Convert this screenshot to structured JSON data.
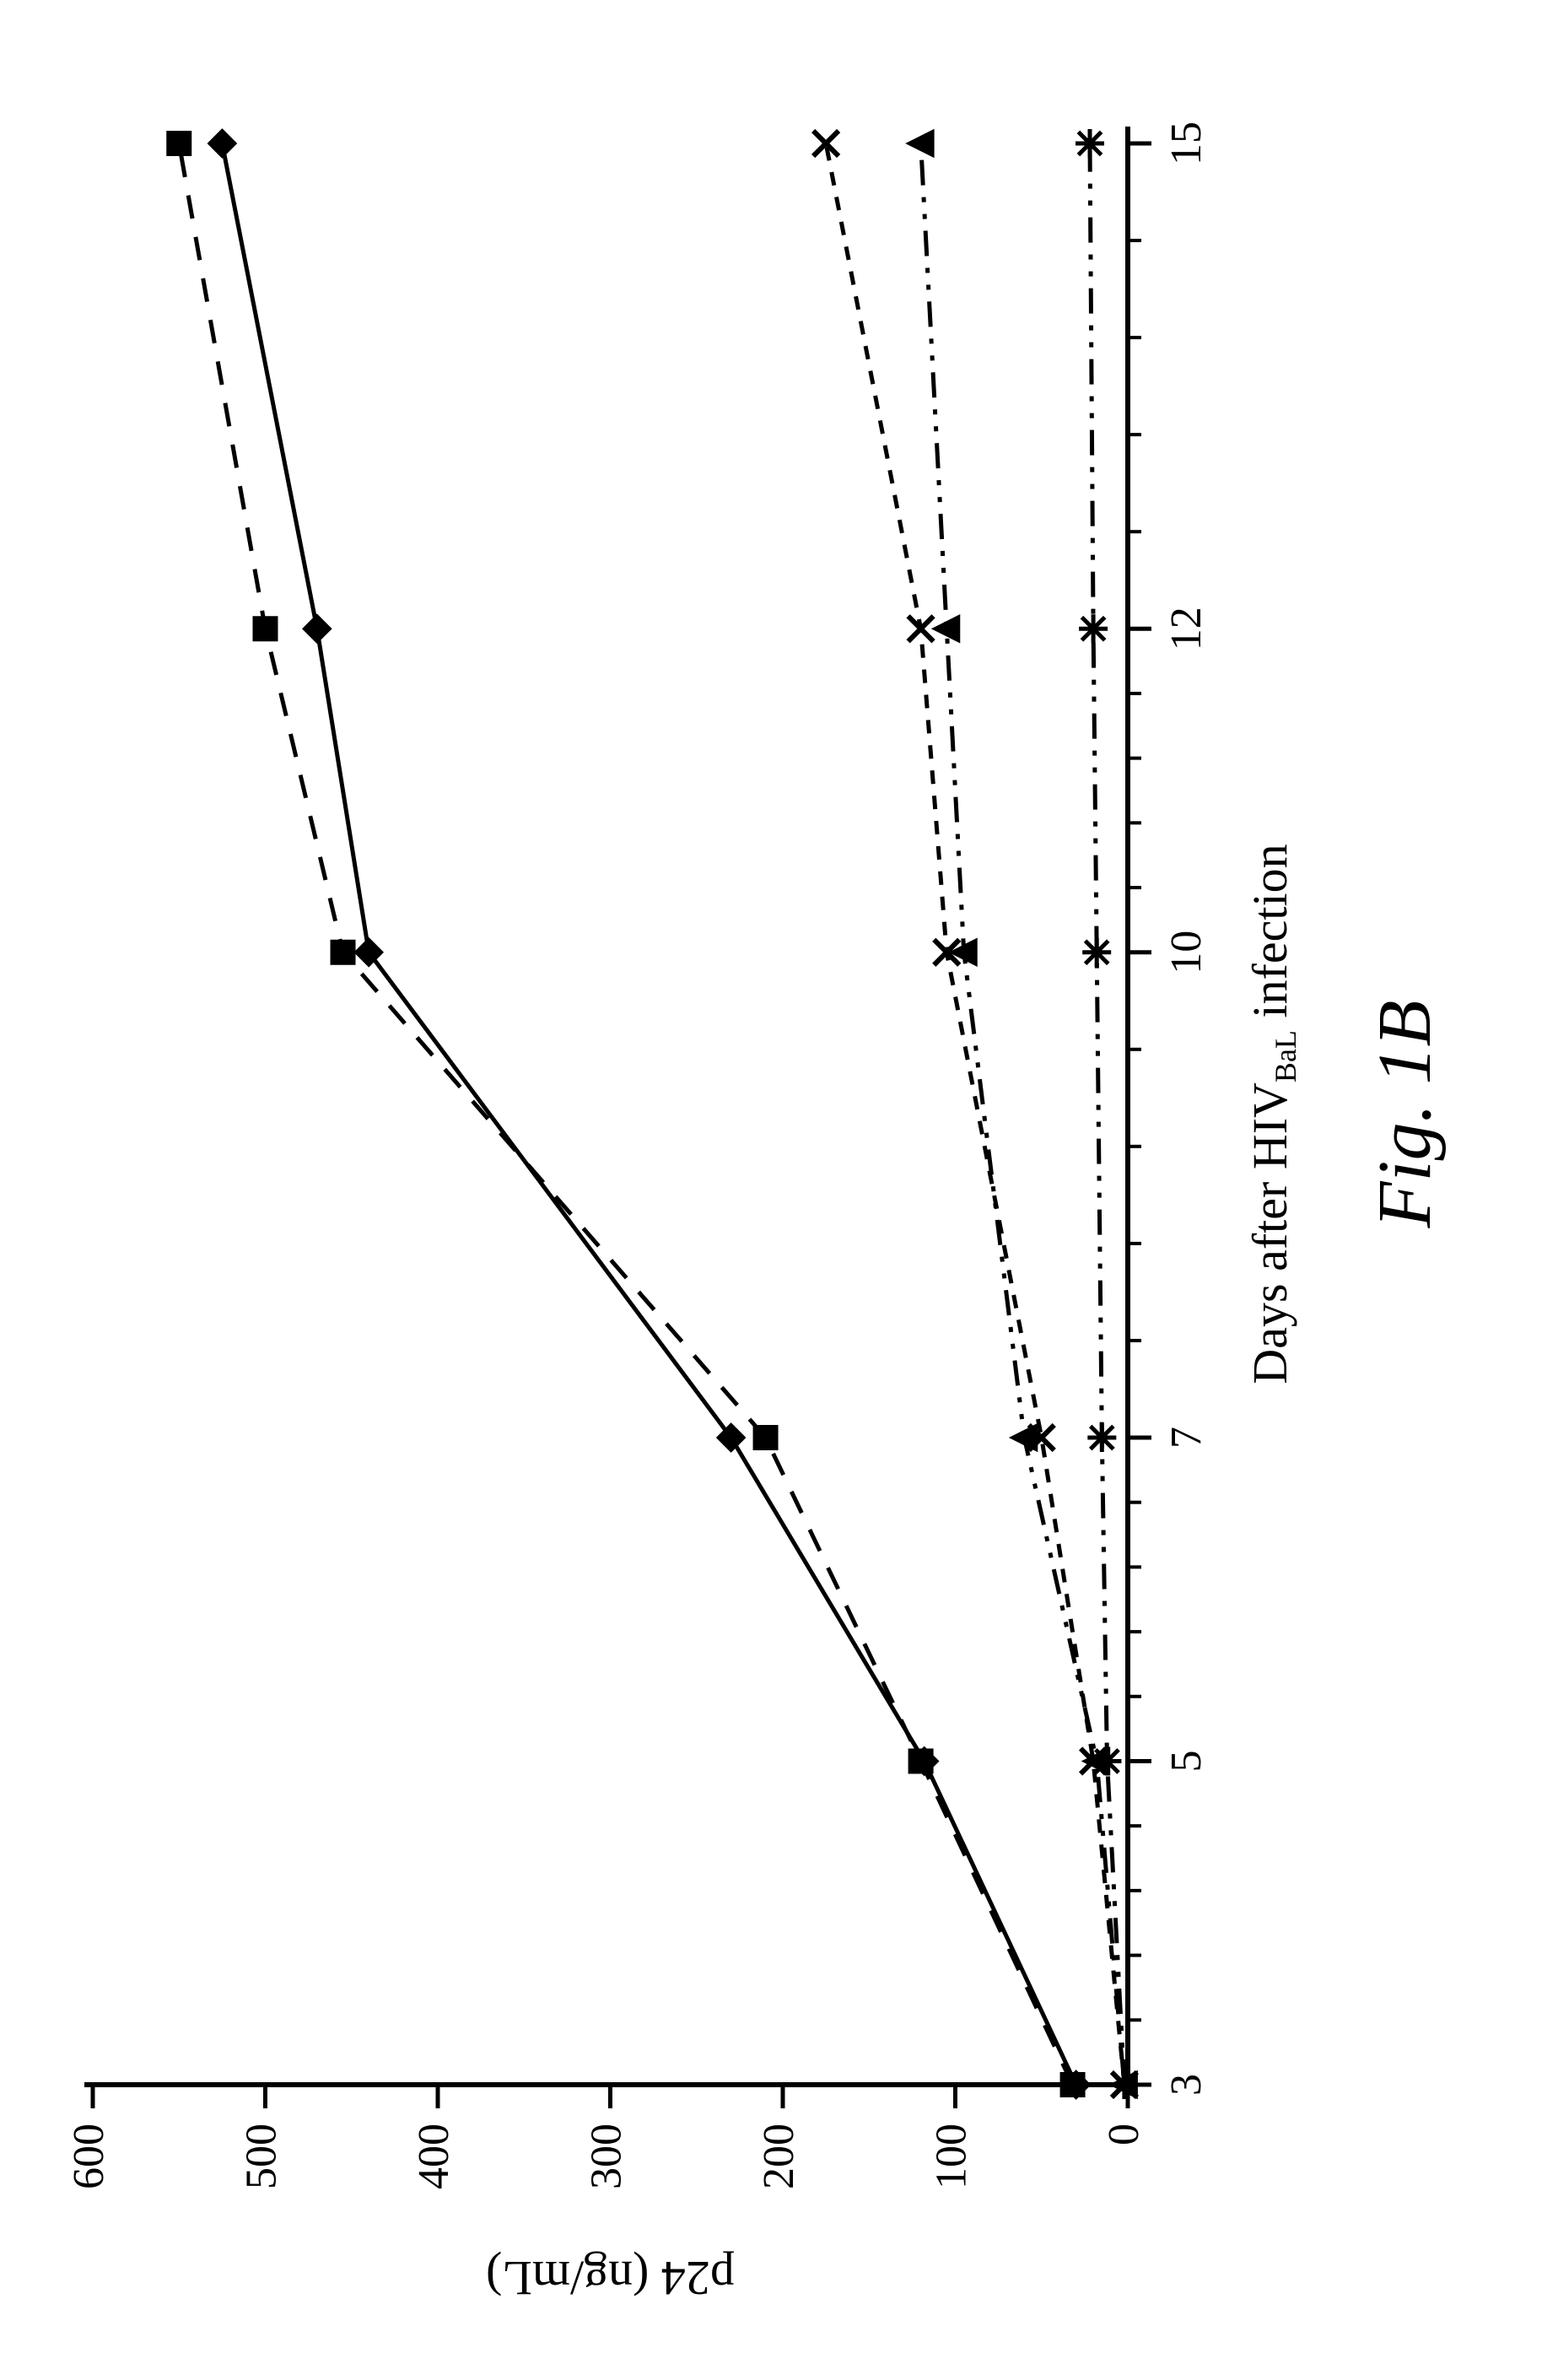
{
  "chart": {
    "type": "line",
    "orientation": "rotated-90-ccw",
    "background_color": "#ffffff",
    "axis_color": "#000000",
    "y": {
      "label": "p24 (ng/mL)",
      "label_fontsize": 58,
      "min": 0,
      "max": 600,
      "ticks": [
        0,
        100,
        200,
        300,
        400,
        500,
        600
      ],
      "tick_fontsize": 52,
      "tick_major_len": 28,
      "axis_line_width": 6
    },
    "x": {
      "label_prefix": "Days after HIV",
      "label_sub": "BaL",
      "label_suffix": " infection",
      "label_fontsize": 58,
      "ticks": [
        3,
        5,
        7,
        10,
        12,
        15
      ],
      "tick_fontsize": 52,
      "tick_major_len": 28,
      "tick_minor_len": 16,
      "axis_line_width": 6,
      "minor_divisions_between_ticks": 4
    },
    "series": [
      {
        "name": "series-diamond-solid",
        "marker": "diamond",
        "marker_filled": true,
        "line_dash": "solid",
        "line_width": 5,
        "marker_size": 30,
        "color": "#000000",
        "data": [
          {
            "x": 3,
            "y": 30
          },
          {
            "x": 5,
            "y": 118
          },
          {
            "x": 7,
            "y": 230
          },
          {
            "x": 10,
            "y": 440
          },
          {
            "x": 12,
            "y": 470
          },
          {
            "x": 15,
            "y": 525
          }
        ]
      },
      {
        "name": "series-square-dash",
        "marker": "square",
        "marker_filled": true,
        "line_dash": "dash",
        "line_width": 5,
        "marker_size": 26,
        "color": "#000000",
        "data": [
          {
            "x": 3,
            "y": 32
          },
          {
            "x": 5,
            "y": 120
          },
          {
            "x": 7,
            "y": 210
          },
          {
            "x": 10,
            "y": 455
          },
          {
            "x": 12,
            "y": 500
          },
          {
            "x": 15,
            "y": 550
          }
        ]
      },
      {
        "name": "series-x-shortdash",
        "marker": "x",
        "marker_filled": false,
        "line_dash": "shortdash",
        "line_width": 5,
        "marker_size": 30,
        "color": "#000000",
        "data": [
          {
            "x": 3,
            "y": 2
          },
          {
            "x": 5,
            "y": 20
          },
          {
            "x": 7,
            "y": 50
          },
          {
            "x": 10,
            "y": 105
          },
          {
            "x": 12,
            "y": 120
          },
          {
            "x": 15,
            "y": 175
          }
        ]
      },
      {
        "name": "series-triangle-dashdot",
        "marker": "triangle",
        "marker_filled": true,
        "line_dash": "dashdotdot",
        "line_width": 5,
        "marker_size": 28,
        "color": "#000000",
        "data": [
          {
            "x": 3,
            "y": 2
          },
          {
            "x": 5,
            "y": 18
          },
          {
            "x": 7,
            "y": 60
          },
          {
            "x": 10,
            "y": 95
          },
          {
            "x": 12,
            "y": 105
          },
          {
            "x": 15,
            "y": 120
          }
        ]
      },
      {
        "name": "series-asterisk-dashdotdot",
        "marker": "asterisk",
        "marker_filled": false,
        "line_dash": "dashdotdot",
        "line_width": 5,
        "marker_size": 34,
        "color": "#000000",
        "data": [
          {
            "x": 3,
            "y": 2
          },
          {
            "x": 5,
            "y": 12
          },
          {
            "x": 7,
            "y": 15
          },
          {
            "x": 10,
            "y": 18
          },
          {
            "x": 12,
            "y": 20
          },
          {
            "x": 15,
            "y": 22
          }
        ]
      }
    ],
    "caption": "Fig. 1B",
    "caption_fontsize": 90
  }
}
